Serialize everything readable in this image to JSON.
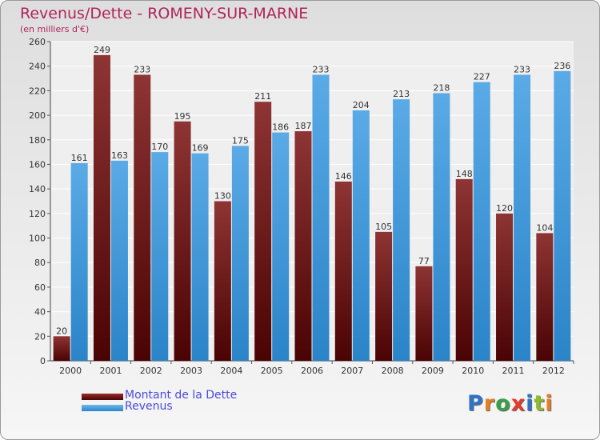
{
  "chart_data": {
    "type": "bar",
    "title": "Revenus/Dette - ROMENY-SUR-MARNE",
    "subtitle": "(en milliers d'€)",
    "categories": [
      "2000",
      "2001",
      "2002",
      "2003",
      "2004",
      "2005",
      "2006",
      "2007",
      "2008",
      "2009",
      "2010",
      "2011",
      "2012"
    ],
    "series": [
      {
        "name": "Montant de la Dette",
        "color": "#7a1010",
        "values": [
          20,
          249,
          233,
          195,
          130,
          211,
          187,
          146,
          105,
          77,
          148,
          120,
          104
        ]
      },
      {
        "name": "Revenus",
        "color": "#3d98dc",
        "values": [
          161,
          163,
          170,
          169,
          175,
          186,
          233,
          204,
          213,
          218,
          227,
          233,
          236
        ]
      }
    ],
    "ylim": [
      0,
      260
    ],
    "yticks": [
      0,
      20,
      40,
      60,
      80,
      100,
      120,
      140,
      160,
      180,
      200,
      220,
      240,
      260
    ],
    "grid": true,
    "legend": "bottom-left"
  },
  "logo": {
    "letters": [
      {
        "ch": "P",
        "color": "#2f73c9"
      },
      {
        "ch": "r",
        "color": "#e67e22"
      },
      {
        "ch": "o",
        "color": "#3aa048"
      },
      {
        "ch": "x",
        "color": "#e63b2e"
      },
      {
        "ch": "i",
        "color": "#2f73c9"
      },
      {
        "ch": "t",
        "color": "#8cbb2c"
      },
      {
        "ch": "i",
        "color": "#e67e22"
      }
    ]
  }
}
